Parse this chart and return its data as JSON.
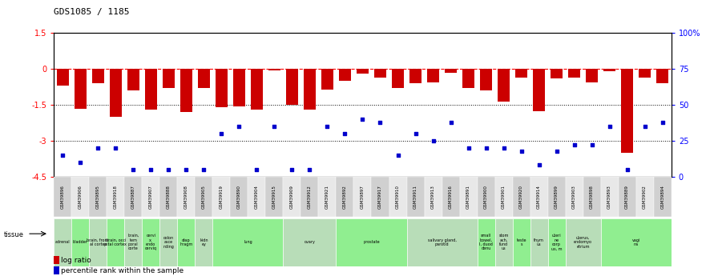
{
  "title": "GDS1085 / 1185",
  "gsm_labels": [
    "GSM39896",
    "GSM39906",
    "GSM39895",
    "GSM39918",
    "GSM39887",
    "GSM39907",
    "GSM39888",
    "GSM39908",
    "GSM39905",
    "GSM39919",
    "GSM39890",
    "GSM39904",
    "GSM39915",
    "GSM39909",
    "GSM39912",
    "GSM39921",
    "GSM39892",
    "GSM39897",
    "GSM39917",
    "GSM39910",
    "GSM39911",
    "GSM39913",
    "GSM39916",
    "GSM39891",
    "GSM39900",
    "GSM39901",
    "GSM39920",
    "GSM39914",
    "GSM39899",
    "GSM39903",
    "GSM39898",
    "GSM39893",
    "GSM39889",
    "GSM39902",
    "GSM39894"
  ],
  "log_ratio": [
    -0.7,
    -1.65,
    -0.6,
    -2.0,
    -0.9,
    -1.7,
    -0.8,
    -1.8,
    -0.8,
    -1.6,
    -1.55,
    -1.7,
    -0.05,
    -1.5,
    -1.7,
    -0.85,
    -0.5,
    -0.2,
    -0.35,
    -0.8,
    -0.6,
    -0.55,
    -0.15,
    -0.8,
    -0.9,
    -1.35,
    -0.35,
    -1.75,
    -0.4,
    -0.35,
    -0.55,
    -0.1,
    -3.5,
    -0.35,
    -0.6
  ],
  "percentile_rank": [
    15,
    10,
    20,
    20,
    5,
    5,
    5,
    5,
    5,
    30,
    35,
    5,
    35,
    5,
    5,
    35,
    30,
    40,
    38,
    15,
    30,
    25,
    38,
    20,
    20,
    20,
    18,
    8,
    18,
    22,
    22,
    35,
    5,
    35,
    38
  ],
  "ylim_left": [
    -4.5,
    1.5
  ],
  "ylim_right": [
    0,
    100
  ],
  "bar_color": "#cc0000",
  "dot_color": "#0000cc",
  "tissue_groups": [
    {
      "label": "adrenal",
      "indices": [
        0
      ],
      "color": "#b8ddb8"
    },
    {
      "label": "bladder",
      "indices": [
        1
      ],
      "color": "#90ee90"
    },
    {
      "label": "brain, front\nal cortex",
      "indices": [
        2
      ],
      "color": "#b8ddb8"
    },
    {
      "label": "brain, occi\npital cortex",
      "indices": [
        3
      ],
      "color": "#90ee90"
    },
    {
      "label": "brain,\ntem\nporal\ncorte",
      "indices": [
        4
      ],
      "color": "#b8ddb8"
    },
    {
      "label": "cervi\nx,\nendo\ncerviq",
      "indices": [
        5
      ],
      "color": "#90ee90"
    },
    {
      "label": "colon\nasce\nnding",
      "indices": [
        6
      ],
      "color": "#b8ddb8"
    },
    {
      "label": "diap\nhragm",
      "indices": [
        7
      ],
      "color": "#90ee90"
    },
    {
      "label": "kidn\ney",
      "indices": [
        8
      ],
      "color": "#b8ddb8"
    },
    {
      "label": "lung",
      "indices": [
        9,
        10,
        11,
        12
      ],
      "color": "#90ee90"
    },
    {
      "label": "ovary",
      "indices": [
        13,
        14,
        15
      ],
      "color": "#b8ddb8"
    },
    {
      "label": "prostate",
      "indices": [
        16,
        17,
        18,
        19
      ],
      "color": "#90ee90"
    },
    {
      "label": "salivary gland,\nparotid",
      "indices": [
        20,
        21,
        22,
        23
      ],
      "color": "#b8ddb8"
    },
    {
      "label": "small\nbowel,\nI, duod\ndenu",
      "indices": [
        24
      ],
      "color": "#90ee90"
    },
    {
      "label": "stom\nach,\nfund\nus",
      "indices": [
        25
      ],
      "color": "#b8ddb8"
    },
    {
      "label": "teste\ns",
      "indices": [
        26
      ],
      "color": "#90ee90"
    },
    {
      "label": "thym\nus",
      "indices": [
        27
      ],
      "color": "#b8ddb8"
    },
    {
      "label": "uteri\nne\ncorp\nus, m",
      "indices": [
        28
      ],
      "color": "#90ee90"
    },
    {
      "label": "uterus,\nendomyo\netrium",
      "indices": [
        29,
        30
      ],
      "color": "#b8ddb8"
    },
    {
      "label": "vagi\nna",
      "indices": [
        31,
        32,
        33,
        34
      ],
      "color": "#90ee90"
    }
  ],
  "legend_log_ratio": "log ratio",
  "legend_pct": "percentile rank within the sample"
}
